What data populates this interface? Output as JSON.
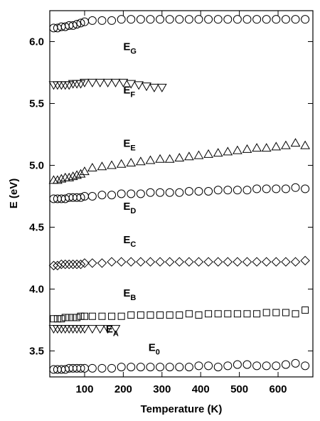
{
  "chart_data": {
    "type": "scatter",
    "xlabel": "Temperature (K)",
    "ylabel": "E (eV)",
    "xlim": [
      10,
      690
    ],
    "ylim": [
      3.29,
      6.25
    ],
    "xticks": [
      100,
      200,
      300,
      400,
      500,
      600
    ],
    "yticks": [
      3.5,
      {
        "value": 4,
        "label": "4.0"
      },
      4.5,
      {
        "value": 5,
        "label": "5.0"
      },
      5.5,
      {
        "value": 6,
        "label": "6.0"
      }
    ],
    "series": [
      {
        "name": "E",
        "sub": "G",
        "marker": "circle",
        "color": "#000000",
        "label_x": 200,
        "label_y": 5.93,
        "x": [
          20,
          30,
          40,
          50,
          60,
          70,
          80,
          90,
          100,
          120,
          145,
          170,
          195,
          220,
          245,
          270,
          295,
          320,
          345,
          370,
          395,
          420,
          445,
          470,
          495,
          520,
          545,
          570,
          595,
          620,
          645,
          670
        ],
        "values": [
          6.11,
          6.11,
          6.12,
          6.12,
          6.13,
          6.13,
          6.14,
          6.15,
          6.16,
          6.17,
          6.17,
          6.17,
          6.18,
          6.18,
          6.18,
          6.18,
          6.18,
          6.18,
          6.18,
          6.18,
          6.18,
          6.18,
          6.18,
          6.18,
          6.18,
          6.18,
          6.18,
          6.18,
          6.18,
          6.18,
          6.18,
          6.18
        ]
      },
      {
        "name": "E",
        "sub": "F",
        "marker": "triangle-down",
        "color": "#000000",
        "label_x": 200,
        "label_y": 5.58,
        "x": [
          20,
          30,
          40,
          50,
          60,
          70,
          80,
          90,
          100,
          120,
          140,
          160,
          180,
          200,
          220,
          240,
          260,
          280,
          300
        ],
        "values": [
          5.65,
          5.65,
          5.65,
          5.65,
          5.65,
          5.66,
          5.66,
          5.66,
          5.67,
          5.67,
          5.67,
          5.67,
          5.67,
          5.67,
          5.66,
          5.65,
          5.64,
          5.63,
          5.63
        ]
      },
      {
        "name": "E",
        "sub": "E",
        "marker": "triangle-up",
        "color": "#000000",
        "label_x": 200,
        "label_y": 5.15,
        "x": [
          20,
          30,
          40,
          50,
          60,
          70,
          80,
          90,
          100,
          120,
          145,
          170,
          195,
          220,
          245,
          270,
          295,
          320,
          345,
          370,
          395,
          420,
          445,
          470,
          495,
          520,
          545,
          570,
          595,
          620,
          645,
          670
        ],
        "values": [
          4.88,
          4.88,
          4.89,
          4.9,
          4.9,
          4.91,
          4.92,
          4.93,
          4.95,
          4.98,
          4.99,
          5.0,
          5.01,
          5.02,
          5.03,
          5.04,
          5.05,
          5.05,
          5.06,
          5.07,
          5.08,
          5.09,
          5.1,
          5.11,
          5.12,
          5.13,
          5.14,
          5.14,
          5.15,
          5.16,
          5.18,
          5.16
        ]
      },
      {
        "name": "E",
        "sub": "D",
        "marker": "circle",
        "color": "#000000",
        "label_x": 200,
        "label_y": 4.64,
        "x": [
          20,
          30,
          40,
          50,
          60,
          70,
          80,
          90,
          100,
          120,
          145,
          170,
          195,
          220,
          245,
          270,
          295,
          320,
          345,
          370,
          395,
          420,
          445,
          470,
          495,
          520,
          545,
          570,
          595,
          620,
          645,
          670
        ],
        "values": [
          4.73,
          4.73,
          4.73,
          4.73,
          4.74,
          4.74,
          4.74,
          4.74,
          4.75,
          4.75,
          4.76,
          4.76,
          4.77,
          4.77,
          4.77,
          4.78,
          4.78,
          4.78,
          4.78,
          4.79,
          4.79,
          4.79,
          4.8,
          4.8,
          4.8,
          4.8,
          4.81,
          4.81,
          4.81,
          4.81,
          4.82,
          4.81
        ]
      },
      {
        "name": "E",
        "sub": "C",
        "marker": "diamond",
        "color": "#000000",
        "label_x": 200,
        "label_y": 4.37,
        "x": [
          20,
          30,
          40,
          50,
          60,
          70,
          80,
          90,
          100,
          120,
          145,
          170,
          195,
          220,
          245,
          270,
          295,
          320,
          345,
          370,
          395,
          420,
          445,
          470,
          495,
          520,
          545,
          570,
          595,
          620,
          645,
          670
        ],
        "values": [
          4.19,
          4.19,
          4.2,
          4.2,
          4.2,
          4.2,
          4.2,
          4.2,
          4.21,
          4.21,
          4.21,
          4.22,
          4.22,
          4.22,
          4.22,
          4.22,
          4.22,
          4.22,
          4.22,
          4.22,
          4.22,
          4.22,
          4.22,
          4.22,
          4.22,
          4.22,
          4.22,
          4.22,
          4.22,
          4.22,
          4.22,
          4.23
        ]
      },
      {
        "name": "E",
        "sub": "B",
        "marker": "square",
        "color": "#000000",
        "label_x": 200,
        "label_y": 3.94,
        "x": [
          20,
          30,
          40,
          50,
          60,
          70,
          80,
          90,
          100,
          120,
          145,
          170,
          195,
          220,
          245,
          270,
          295,
          320,
          345,
          370,
          395,
          420,
          445,
          470,
          495,
          520,
          545,
          570,
          595,
          620,
          645,
          670
        ],
        "values": [
          3.76,
          3.76,
          3.76,
          3.77,
          3.77,
          3.77,
          3.77,
          3.78,
          3.78,
          3.78,
          3.78,
          3.78,
          3.78,
          3.79,
          3.79,
          3.79,
          3.79,
          3.79,
          3.79,
          3.8,
          3.79,
          3.8,
          3.8,
          3.8,
          3.8,
          3.8,
          3.8,
          3.81,
          3.81,
          3.81,
          3.8,
          3.83
        ]
      },
      {
        "name": "E",
        "sub": "A",
        "marker": "triangle-down",
        "color": "#000000",
        "label_x": 155,
        "label_y": 3.65,
        "x": [
          20,
          30,
          40,
          50,
          60,
          70,
          80,
          90,
          100,
          120,
          140,
          160,
          180
        ],
        "values": [
          3.68,
          3.68,
          3.68,
          3.68,
          3.68,
          3.68,
          3.68,
          3.68,
          3.68,
          3.68,
          3.68,
          3.68,
          3.68
        ]
      },
      {
        "name": "E",
        "sub": "0",
        "marker": "circle",
        "color": "#000000",
        "label_x": 265,
        "label_y": 3.5,
        "x": [
          20,
          30,
          40,
          50,
          60,
          70,
          80,
          90,
          100,
          120,
          145,
          170,
          195,
          220,
          245,
          270,
          295,
          320,
          345,
          370,
          395,
          420,
          445,
          470,
          495,
          520,
          545,
          570,
          595,
          620,
          645,
          670
        ],
        "values": [
          3.35,
          3.35,
          3.35,
          3.35,
          3.36,
          3.36,
          3.36,
          3.36,
          3.36,
          3.36,
          3.36,
          3.36,
          3.37,
          3.37,
          3.37,
          3.37,
          3.37,
          3.37,
          3.37,
          3.37,
          3.38,
          3.38,
          3.37,
          3.38,
          3.39,
          3.39,
          3.38,
          3.38,
          3.38,
          3.39,
          3.4,
          3.38
        ]
      }
    ]
  }
}
